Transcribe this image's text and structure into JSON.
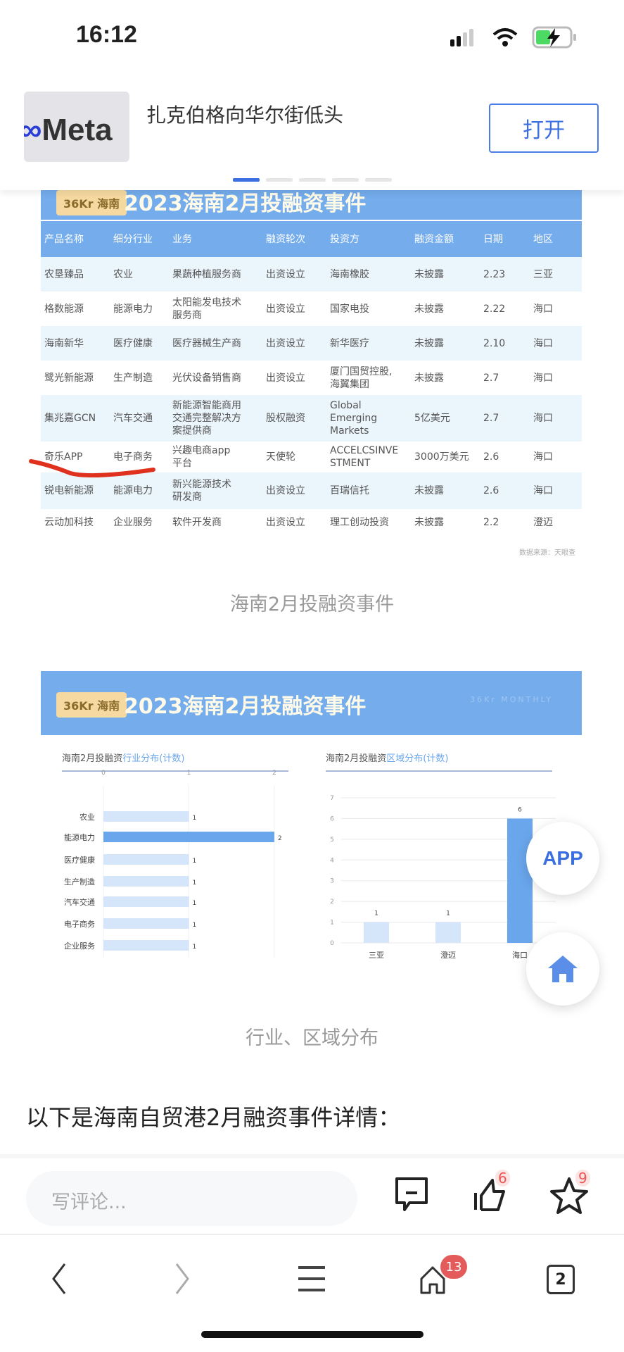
{
  "status_bar": {
    "time": "16:12"
  },
  "banner": {
    "title": "扎克伯格向华尔街低头",
    "open_label": "打开",
    "thumb_logo": "Meta",
    "active_dot": 0,
    "dot_count": 5
  },
  "table_image": {
    "banner_title": "2023海南2月投融资事件",
    "logo_text": "36Kr 海南",
    "headers": [
      "产品名称",
      "细分行业",
      "业务",
      "融资轮次",
      "投资方",
      "融资金额",
      "日期",
      "地区"
    ],
    "rows": [
      [
        "农垦臻品",
        "农业",
        "果蔬种植服务商",
        "出资设立",
        "海南橡胶",
        "未披露",
        "2.23",
        "三亚"
      ],
      [
        "格数能源",
        "能源电力",
        "太阳能发电技术\n服务商",
        "出资设立",
        "国家电投",
        "未披露",
        "2.22",
        "海口"
      ],
      [
        "海南新华",
        "医疗健康",
        "医疗器械生产商",
        "出资设立",
        "新华医疗",
        "未披露",
        "2.10",
        "海口"
      ],
      [
        "鹭光新能源",
        "生产制造",
        "光伏设备销售商",
        "出资设立",
        "厦门国贸控股,\n海翼集团",
        "未披露",
        "2.7",
        "海口"
      ],
      [
        "集兆嘉GCN",
        "汽车交通",
        "新能源智能商用\n交通完整解决方\n案提供商",
        "股权融资",
        "Global\nEmerging\nMarkets",
        "5亿美元",
        "2.7",
        "海口"
      ],
      [
        "奇乐APP",
        "电子商务",
        "兴趣电商app\n平台",
        "天使轮",
        "ACCELCSINVE\nSTMENT",
        "3000万美元",
        "2.6",
        "海口"
      ],
      [
        "锐电新能源",
        "能源电力",
        "新兴能源技术\n研发商",
        "出资设立",
        "百瑞信托",
        "未披露",
        "2.6",
        "海口"
      ],
      [
        "云动加科技",
        "企业服务",
        "软件开发商",
        "出资设立",
        "理工创动投资",
        "未披露",
        "2.2",
        "澄迈"
      ]
    ],
    "source": "数据来源：天眼查",
    "caption": "海南2月投融资事件"
  },
  "chart_image": {
    "banner_title": "2023海南2月投融资事件",
    "logo_text": "36Kr 海南",
    "watermark": "36Kr MONTHLY",
    "caption": "行业、区域分布"
  },
  "chart_data": [
    {
      "type": "bar",
      "orientation": "horizontal",
      "title_prefix": "海南2月投融资",
      "title_highlight": "行业分布(计数)",
      "categories": [
        "农业",
        "能源电力",
        "医疗健康",
        "生产制造",
        "汽车交通",
        "电子商务",
        "企业服务"
      ],
      "values": [
        1,
        2,
        1,
        1,
        1,
        1,
        1
      ],
      "xlim": [
        0,
        2
      ],
      "xticks": [
        "0",
        "1",
        "2"
      ],
      "highlight_color": "#6aa6ec",
      "base_color": "#d6e6fa",
      "grid": true
    },
    {
      "type": "bar",
      "orientation": "vertical",
      "title_prefix": "海南2月投融资",
      "title_highlight": "区域分布(计数)",
      "categories": [
        "三亚",
        "澄迈",
        "海口"
      ],
      "values": [
        1,
        1,
        6
      ],
      "ylim": [
        0,
        7
      ],
      "yticks": [
        "0",
        "1",
        "2",
        "3",
        "4",
        "5",
        "6",
        "7"
      ],
      "highlight_color": "#6aa6ec",
      "base_color": "#d6e6fa",
      "grid": true
    }
  ],
  "article": {
    "intro": "以下是海南自贸港2月融资事件详情："
  },
  "fab": {
    "app_label": "APP"
  },
  "comment_bar": {
    "placeholder": "写评论...",
    "like_count": "6",
    "fav_count": "9"
  },
  "nav": {
    "home_badge": "13",
    "tab_count": "2"
  },
  "colors": {
    "accent": "#3b6fe0",
    "table_header": "#74acec",
    "badge": "#e55555"
  }
}
